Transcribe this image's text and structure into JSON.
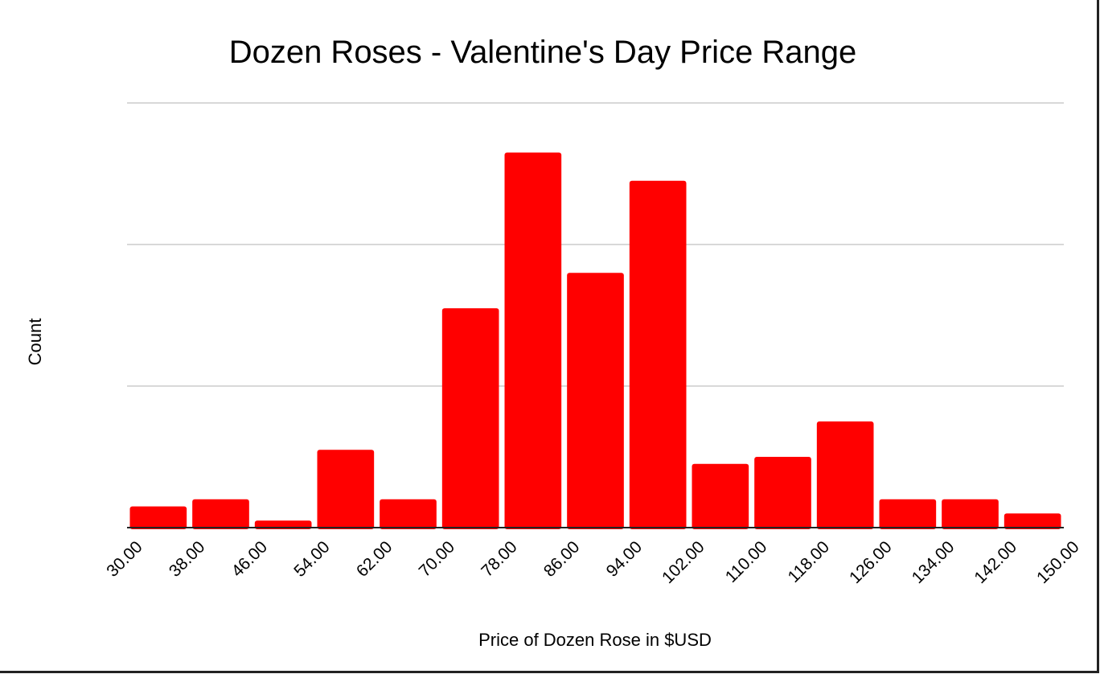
{
  "chart_data": {
    "type": "bar",
    "title": "Dozen Roses - Valentine's Day Price Range",
    "xlabel": "Price of Dozen Rose in $USD",
    "ylabel": "Count",
    "x_tick_labels": [
      "30.00",
      "38.00",
      "46.00",
      "54.00",
      "62.00",
      "70.00",
      "78.00",
      "86.00",
      "94.00",
      "102.00",
      "110.00",
      "118.00",
      "126.00",
      "134.00",
      "142.00",
      "150.00"
    ],
    "bins": [
      {
        "from": 30,
        "to": 38,
        "value": 1.5
      },
      {
        "from": 38,
        "to": 46,
        "value": 2
      },
      {
        "from": 46,
        "to": 54,
        "value": 0.5
      },
      {
        "from": 54,
        "to": 62,
        "value": 5.5
      },
      {
        "from": 62,
        "to": 70,
        "value": 2
      },
      {
        "from": 70,
        "to": 78,
        "value": 15.5
      },
      {
        "from": 78,
        "to": 86,
        "value": 26.5
      },
      {
        "from": 86,
        "to": 94,
        "value": 18
      },
      {
        "from": 94,
        "to": 102,
        "value": 24.5
      },
      {
        "from": 102,
        "to": 110,
        "value": 4.5
      },
      {
        "from": 110,
        "to": 118,
        "value": 5
      },
      {
        "from": 118,
        "to": 126,
        "value": 7.5
      },
      {
        "from": 126,
        "to": 134,
        "value": 2
      },
      {
        "from": 134,
        "to": 142,
        "value": 2
      },
      {
        "from": 142,
        "to": 150,
        "value": 1
      }
    ],
    "xlim": [
      30,
      150
    ],
    "ylim": [
      0,
      30
    ],
    "gridlines": [
      10,
      20,
      30
    ],
    "y_tick_labels_shown": false,
    "bar_color": "#ff0000",
    "gridline_color": "#cccccc",
    "axis_color": "#222222",
    "grid": true,
    "legend": "none"
  }
}
